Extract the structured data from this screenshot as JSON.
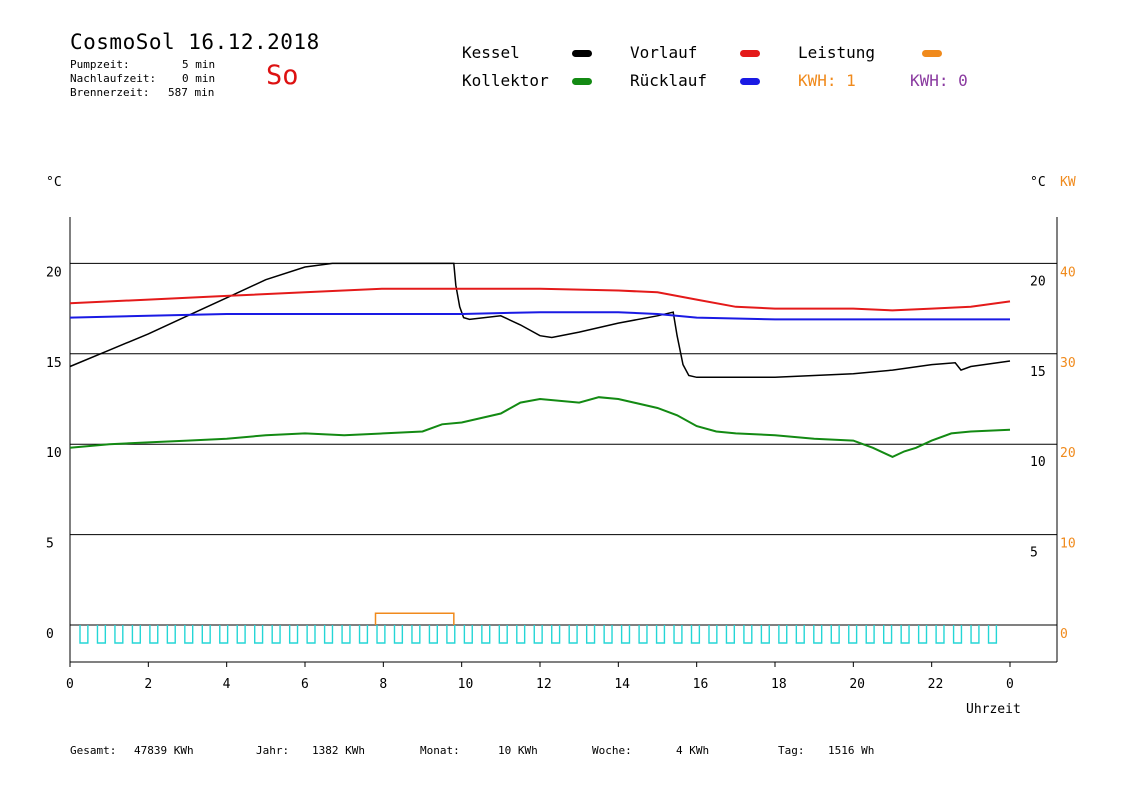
{
  "header": {
    "title": "CosmoSol 16.12.2018",
    "stats": [
      {
        "label": "Pumpzeit:",
        "value": "5 min"
      },
      {
        "label": "Nachlaufzeit:",
        "value": "0 min"
      },
      {
        "label": "Brennerzeit:",
        "value": "587 min"
      }
    ],
    "day": "So"
  },
  "legend": {
    "items": [
      {
        "label": "Kessel",
        "color": "#000000"
      },
      {
        "label": "Vorlauf",
        "color": "#e41a1a"
      },
      {
        "label": "Leistung",
        "color": "#f08a1c"
      },
      {
        "label": "Kollektor",
        "color": "#138a13"
      },
      {
        "label": "Rücklauf",
        "color": "#1a1ae4"
      }
    ],
    "kwh1": "KWH: 1",
    "kwh0": "KWH: 0",
    "kwh1_color": "#f08a1c",
    "kwh0_color": "#8a3aa0"
  },
  "chart_data": {
    "type": "line",
    "xlabel": "Uhrzeit",
    "ylabel_left": "°C",
    "ylabel_right": "°C",
    "ylabel_right2": "KW",
    "xlim": [
      0,
      24
    ],
    "ylim": [
      -2,
      22.5
    ],
    "ylim_kw": [
      -4,
      45
    ],
    "x_ticks": [
      "0",
      "2",
      "4",
      "6",
      "8",
      "10",
      "12",
      "14",
      "16",
      "18",
      "20",
      "22",
      "0"
    ],
    "y_ticks_left": [
      "0",
      "5",
      "10",
      "15",
      "20"
    ],
    "y_ticks_right": [
      "5",
      "10",
      "15",
      "20"
    ],
    "y_ticks_kw": [
      "0",
      "10",
      "20",
      "30",
      "40"
    ],
    "gridlines_y": [
      0,
      5,
      10,
      15,
      20
    ],
    "series": [
      {
        "name": "Kessel",
        "color": "#000000",
        "x": [
          0,
          1,
          2,
          3,
          4,
          5,
          6,
          6.7,
          9.8,
          9.85,
          9.95,
          10.05,
          10.2,
          11,
          11.5,
          12,
          12.3,
          13,
          14,
          15,
          15.4,
          15.5,
          15.65,
          15.8,
          16,
          17,
          18,
          19,
          20,
          21,
          22,
          22.6,
          22.75,
          23,
          24
        ],
        "y": [
          14.3,
          15.2,
          16.1,
          17.1,
          18.1,
          19.1,
          19.8,
          20.0,
          20.0,
          18.8,
          17.6,
          17.0,
          16.9,
          17.1,
          16.6,
          16.0,
          15.9,
          16.2,
          16.7,
          17.1,
          17.3,
          16.0,
          14.4,
          13.8,
          13.7,
          13.7,
          13.7,
          13.8,
          13.9,
          14.1,
          14.4,
          14.5,
          14.1,
          14.3,
          14.6
        ]
      },
      {
        "name": "Vorlauf",
        "color": "#e41a1a",
        "x": [
          0,
          2,
          4,
          6,
          8,
          10,
          12,
          14,
          15,
          16,
          17,
          18,
          20,
          21,
          22,
          23,
          24
        ],
        "y": [
          17.8,
          18.0,
          18.2,
          18.4,
          18.6,
          18.6,
          18.6,
          18.5,
          18.4,
          18.0,
          17.6,
          17.5,
          17.5,
          17.4,
          17.5,
          17.6,
          17.9
        ]
      },
      {
        "name": "Rücklauf",
        "color": "#1a1ae4",
        "x": [
          0,
          2,
          4,
          6,
          8,
          10,
          12,
          14,
          15,
          16,
          18,
          20,
          22,
          24
        ],
        "y": [
          17.0,
          17.1,
          17.2,
          17.2,
          17.2,
          17.2,
          17.3,
          17.3,
          17.2,
          17.0,
          16.9,
          16.9,
          16.9,
          16.9
        ]
      },
      {
        "name": "Kollektor",
        "color": "#138a13",
        "x": [
          0,
          1,
          2,
          3,
          4,
          5,
          6,
          7,
          8,
          9,
          9.5,
          10,
          11,
          11.5,
          12,
          13,
          13.5,
          14,
          15,
          15.5,
          16,
          16.5,
          17,
          18,
          19,
          20,
          20.5,
          21,
          21.3,
          21.6,
          22,
          22.5,
          23,
          24
        ],
        "y": [
          9.8,
          10.0,
          10.1,
          10.2,
          10.3,
          10.5,
          10.6,
          10.5,
          10.6,
          10.7,
          11.1,
          11.2,
          11.7,
          12.3,
          12.5,
          12.3,
          12.6,
          12.5,
          12.0,
          11.6,
          11.0,
          10.7,
          10.6,
          10.5,
          10.3,
          10.2,
          9.8,
          9.3,
          9.6,
          9.8,
          10.2,
          10.6,
          10.7,
          10.8
        ]
      }
    ],
    "leistung_kw": {
      "name": "Leistung",
      "color": "#f08a1c",
      "x": [
        7.8,
        9.8
      ],
      "y": [
        1.3,
        1.3
      ]
    },
    "pump_signal_color": "#24d6d6"
  },
  "footer": [
    {
      "label": "Gesamt:",
      "value": "47839 KWh"
    },
    {
      "label": "Jahr:",
      "value": "1382 KWh"
    },
    {
      "label": "Monat:",
      "value": "10 KWh"
    },
    {
      "label": "Woche:",
      "value": "4 KWh"
    },
    {
      "label": "Tag:",
      "value": "1516 Wh"
    }
  ]
}
